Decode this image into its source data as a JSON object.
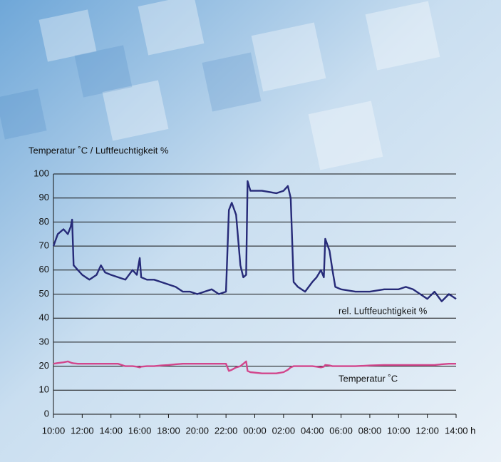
{
  "chart_data": {
    "type": "line",
    "y_label": "Temperatur ˚C / Luftfeuchtigkeit %",
    "x": [
      0,
      0.3,
      0.7,
      1.0,
      1.2,
      1.3,
      1.4,
      1.7,
      2.0,
      2.5,
      3.0,
      3.3,
      3.6,
      4.0,
      4.5,
      5.0,
      5.5,
      5.8,
      6.0,
      6.1,
      6.5,
      7.0,
      7.5,
      8.0,
      8.5,
      9.0,
      9.5,
      10.0,
      10.5,
      11.0,
      11.5,
      12.0,
      12.2,
      12.4,
      12.7,
      13.0,
      13.2,
      13.4,
      13.5,
      13.7,
      14.5,
      15.5,
      16.0,
      16.3,
      16.5,
      16.7,
      17.0,
      17.5,
      18.0,
      18.3,
      18.6,
      18.8,
      18.9,
      19.2,
      19.4,
      19.6,
      20.0,
      21.0,
      22.0,
      23.0,
      24.0,
      24.5,
      25.0,
      25.5,
      26.0,
      26.5,
      27.0,
      27.5,
      28.0
    ],
    "series": [
      {
        "name": "rel. Luftfeuchtigkeit %",
        "color": "#262a78",
        "values": [
          70,
          75,
          77,
          75,
          78,
          81,
          62,
          60,
          58,
          56,
          58,
          62,
          59,
          58,
          57,
          56,
          60,
          58,
          65,
          57,
          56,
          56,
          55,
          54,
          53,
          51,
          51,
          50,
          51,
          52,
          50,
          51,
          85,
          88,
          83,
          62,
          57,
          58,
          97,
          93,
          93,
          92,
          93,
          95,
          90,
          55,
          53,
          51,
          55,
          57,
          60,
          57,
          73,
          68,
          60,
          53,
          52,
          51,
          51,
          52,
          52,
          53,
          52,
          50,
          48,
          51,
          47,
          50,
          48
        ]
      },
      {
        "name": "Temperatur ˚C",
        "color": "#d2468c",
        "values": [
          21,
          21.3,
          21.6,
          22,
          21.5,
          21.3,
          21.2,
          21,
          21,
          21,
          21,
          21,
          21,
          21,
          21,
          20,
          20,
          19.8,
          19.5,
          19.8,
          20,
          20,
          20.3,
          20.5,
          20.8,
          21,
          21,
          21,
          21,
          21,
          21,
          21,
          18,
          18.5,
          19.5,
          20,
          21,
          22,
          18,
          17.5,
          17,
          17,
          17.5,
          18.5,
          19.5,
          20,
          20,
          20,
          20,
          19.8,
          19.5,
          19.8,
          20.5,
          20.3,
          20,
          20,
          20,
          20,
          20.3,
          20.5,
          20.5,
          20.5,
          20.5,
          20.5,
          20.5,
          20.5,
          20.8,
          21,
          21
        ]
      }
    ],
    "xlim": [
      0,
      28
    ],
    "xticks": [
      {
        "value": 0,
        "label": "10:00"
      },
      {
        "value": 2,
        "label": "12:00"
      },
      {
        "value": 4,
        "label": "14:00"
      },
      {
        "value": 6,
        "label": "16:00"
      },
      {
        "value": 8,
        "label": "18:00"
      },
      {
        "value": 10,
        "label": "20:00"
      },
      {
        "value": 12,
        "label": "22:00"
      },
      {
        "value": 14,
        "label": "00:00"
      },
      {
        "value": 16,
        "label": "02:00"
      },
      {
        "value": 18,
        "label": "04:00"
      },
      {
        "value": 20,
        "label": "06:00"
      },
      {
        "value": 22,
        "label": "08:00"
      },
      {
        "value": 24,
        "label": "10:00"
      },
      {
        "value": 26,
        "label": "12:00"
      },
      {
        "value": 28,
        "label": "14:00 h"
      }
    ],
    "ylim": [
      0,
      100
    ],
    "yticks": [
      0,
      10,
      20,
      30,
      40,
      50,
      60,
      70,
      80,
      90,
      100
    ],
    "grid": true
  }
}
